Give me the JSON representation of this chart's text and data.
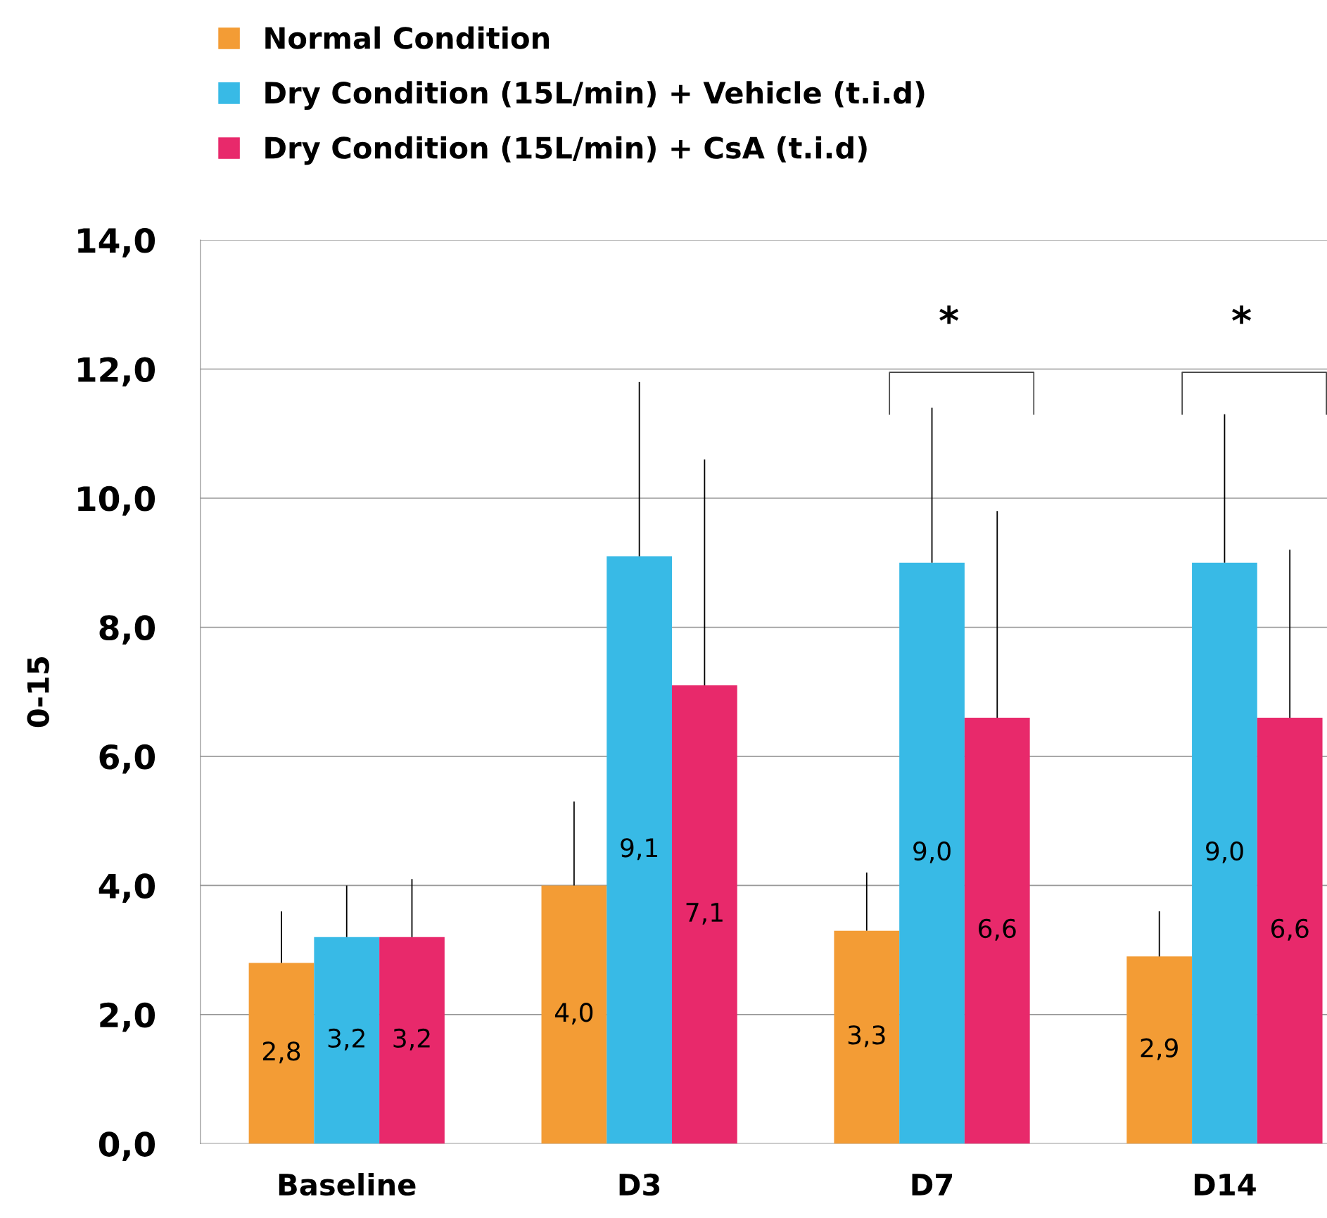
{
  "chart_data": {
    "type": "bar",
    "ylabel": "0-15",
    "categories": [
      "Baseline",
      "D3",
      "D7",
      "D14"
    ],
    "series": [
      {
        "name": "Normal Condition",
        "color": "#f39c35",
        "values": [
          2.8,
          4.0,
          3.3,
          2.9
        ],
        "value_labels": [
          "2,8",
          "4,0",
          "3,3",
          "2,9"
        ],
        "errors": [
          [
            2.8,
            3.6
          ],
          [
            4.0,
            5.3
          ],
          [
            3.3,
            4.2
          ],
          [
            2.9,
            3.6
          ]
        ]
      },
      {
        "name": "Dry Condition (15L/min) + Vehicle (t.i.d)",
        "color": "#38bae6",
        "values": [
          3.2,
          9.1,
          9.0,
          9.0
        ],
        "value_labels": [
          "3,2",
          "9,1",
          "9,0",
          "9,0"
        ],
        "errors": [
          [
            3.2,
            4.0
          ],
          [
            9.1,
            11.8
          ],
          [
            9.0,
            11.4
          ],
          [
            9.0,
            11.3
          ]
        ]
      },
      {
        "name": "Dry Condition (15L/min) + CsA (t.i.d)",
        "color": "#e8296b",
        "values": [
          3.2,
          7.1,
          6.6,
          6.6
        ],
        "value_labels": [
          "3,2",
          "7,1",
          "6,6",
          "6,6"
        ],
        "errors": [
          [
            3.2,
            4.1
          ],
          [
            7.1,
            10.6
          ],
          [
            6.6,
            9.8
          ],
          [
            6.6,
            9.2
          ]
        ]
      }
    ],
    "ylim": [
      0,
      14
    ],
    "yticks": [
      {
        "value": 0,
        "label": "0,0"
      },
      {
        "value": 2,
        "label": "2,0"
      },
      {
        "value": 4,
        "label": "4,0"
      },
      {
        "value": 6,
        "label": "6,0"
      },
      {
        "value": 8,
        "label": "8,0"
      },
      {
        "value": 10,
        "label": "10,0"
      },
      {
        "value": 12,
        "label": "12,0"
      },
      {
        "value": 14,
        "label": "14,0"
      }
    ],
    "grid": "y",
    "legend": "top left",
    "annotations": [
      "*",
      "*"
    ]
  }
}
